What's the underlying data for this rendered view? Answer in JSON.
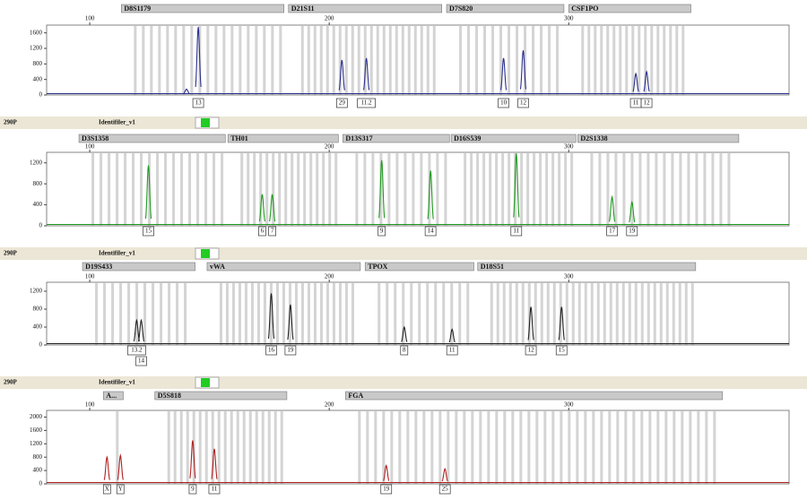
{
  "chart_data": [
    {
      "type": "peak",
      "color": "#2a2f8c",
      "xlim": [
        82,
        392
      ],
      "xticks": [
        100,
        200,
        300
      ],
      "ylim": [
        0,
        1800
      ],
      "yticks": [
        0,
        400,
        800,
        1200,
        1600
      ],
      "markers": [
        {
          "name": "D8S1179",
          "range": [
            113.2,
            181.1
          ]
        },
        {
          "name": "D21S11",
          "range": [
            183,
            247
          ]
        },
        {
          "name": "D7S820",
          "range": [
            249,
            298
          ]
        },
        {
          "name": "CSF1PO",
          "range": [
            300,
            351
          ]
        }
      ],
      "x": [
        140.4,
        145.3,
        205.3,
        215.5,
        272.8,
        281,
        328,
        332.5
      ],
      "values": [
        150,
        1750,
        900,
        950,
        950,
        1150,
        550,
        600
      ],
      "labels": [
        null,
        "13",
        "29",
        "11.2",
        "10",
        "12",
        "11",
        "12"
      ]
    },
    {
      "type": "peak",
      "sample": "290P",
      "panel": "Identifiler_v1",
      "color": "#1f9a1f",
      "xlim": [
        82,
        392
      ],
      "xticks": [
        100,
        200,
        300
      ],
      "ylim": [
        0,
        1400
      ],
      "yticks": [
        0,
        400,
        800,
        1200
      ],
      "markers": [
        {
          "name": "D3S1358",
          "range": [
            95.5,
            156.6
          ]
        },
        {
          "name": "TH01",
          "range": [
            157.7,
            203.8
          ]
        },
        {
          "name": "D13S317",
          "range": [
            205.7,
            250.2
          ]
        },
        {
          "name": "D16S539",
          "range": [
            250.9,
            303
          ]
        },
        {
          "name": "D2S1338",
          "range": [
            303.8,
            371
          ]
        }
      ],
      "x": [
        124.5,
        172,
        176.2,
        221.9,
        242.3,
        278.1,
        318.1,
        326.4
      ],
      "values": [
        1150,
        600,
        600,
        1250,
        1050,
        1380,
        550,
        450
      ],
      "labels": [
        "15",
        "6",
        "7",
        "9",
        "14",
        "11",
        "17",
        "19"
      ]
    },
    {
      "type": "peak",
      "sample": "290P",
      "panel": "Identifiler_v1",
      "color": "#222222",
      "xlim": [
        82,
        392
      ],
      "xticks": [
        100,
        200,
        300
      ],
      "ylim": [
        0,
        1400
      ],
      "yticks": [
        0,
        400,
        800,
        1200
      ],
      "markers": [
        {
          "name": "D19S433",
          "range": [
            97,
            144
          ]
        },
        {
          "name": "vWA",
          "range": [
            149,
            213
          ]
        },
        {
          "name": "TPOX",
          "range": [
            215,
            260.4
          ]
        },
        {
          "name": "D18S51",
          "range": [
            262,
            353
          ]
        }
      ],
      "x": [
        119.6,
        121.5,
        175.8,
        183.8,
        231.3,
        251.3,
        284.2,
        297
      ],
      "values": [
        550,
        550,
        1150,
        900,
        400,
        350,
        850,
        850
      ],
      "labels": [
        "13.2",
        "14",
        "16",
        "19",
        "8",
        "11",
        "12",
        "15"
      ]
    },
    {
      "type": "peak",
      "sample": "290P",
      "panel": "Identifiler_v1",
      "color": "#b02020",
      "xlim": [
        82,
        392
      ],
      "xticks": [
        100,
        200,
        300
      ],
      "ylim": [
        0,
        2200
      ],
      "yticks": [
        0,
        400,
        800,
        1200,
        1600,
        2000
      ],
      "markers": [
        {
          "name": "A...",
          "range": [
            105.7,
            114
          ]
        },
        {
          "name": "D5S818",
          "range": [
            127.2,
            182.3
          ]
        },
        {
          "name": "FGA",
          "range": [
            206.8,
            364.2
          ]
        }
      ],
      "x": [
        107.2,
        112.8,
        143,
        152,
        223.8,
        248.3
      ],
      "values": [
        800,
        850,
        1300,
        1050,
        550,
        450
      ],
      "labels": [
        "X",
        "Y",
        "9",
        "11",
        "19",
        "25"
      ]
    }
  ]
}
